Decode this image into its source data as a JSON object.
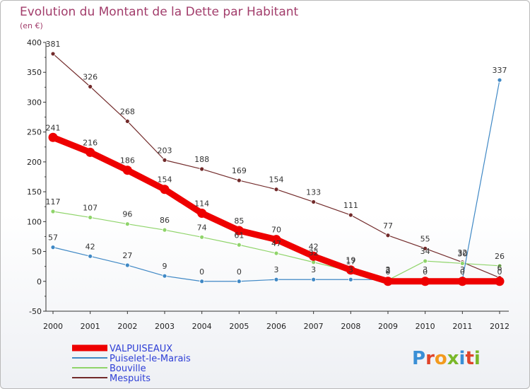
{
  "header": {
    "title": "Evolution du Montant de la Dette par Habitant",
    "unit": "(en €)"
  },
  "logo": {
    "text": "Proxiti",
    "letters": [
      "P",
      "r",
      "o",
      "x",
      "i",
      "t",
      "i"
    ],
    "colors": [
      "#3a8fd6",
      "#e0442a",
      "#f39a1e",
      "#7ab829",
      "#3a8fd6",
      "#e0442a",
      "#7ab829"
    ]
  },
  "chart_data": {
    "type": "line",
    "title": "Evolution du Montant de la Dette par Habitant",
    "subtitle": "(en €)",
    "x": [
      "2000",
      "2001",
      "2002",
      "2003",
      "2004",
      "2005",
      "2006",
      "2007",
      "2008",
      "2009",
      "2010",
      "2011",
      "2012"
    ],
    "ylim": [
      -50,
      400
    ],
    "yticks": [
      -50,
      0,
      50,
      100,
      150,
      200,
      250,
      300,
      350,
      400
    ],
    "grid": false,
    "legend": "bottom-left",
    "series": [
      {
        "name": "VALPUISEAUX",
        "color": "#ee0000",
        "values": [
          241,
          216,
          186,
          154,
          114,
          85,
          70,
          42,
          19,
          0,
          0,
          0,
          0
        ]
      },
      {
        "name": "Puiselet-le-Marais",
        "color": "#3f88c5",
        "values": [
          57,
          42,
          27,
          9,
          0,
          0,
          3,
          3,
          3,
          3,
          3,
          3,
          337
        ]
      },
      {
        "name": "Bouville",
        "color": "#8fd46a",
        "values": [
          117,
          107,
          96,
          86,
          74,
          61,
          47,
          32,
          17,
          2,
          34,
          30,
          26
        ]
      },
      {
        "name": "Mespuits",
        "color": "#722a2a",
        "values": [
          381,
          326,
          268,
          203,
          188,
          169,
          154,
          133,
          111,
          77,
          55,
          32,
          6
        ]
      }
    ],
    "labels": [
      [
        "241",
        "216",
        "186",
        "154",
        "114",
        "85",
        "70",
        "42",
        "19",
        "0",
        "0",
        "0",
        "0"
      ],
      [
        "57",
        "42",
        "27",
        "9",
        "0",
        "0",
        "3",
        "3",
        "3",
        "3",
        "3",
        "3",
        "337"
      ],
      [
        "117",
        "107",
        "96",
        "86",
        "74",
        "61",
        "47",
        "32",
        "17",
        "2",
        "34",
        "30",
        "26"
      ],
      [
        "381",
        "326",
        "268",
        "203",
        "188",
        "169",
        "154",
        "133",
        "111",
        "77",
        "55",
        "32",
        "6"
      ]
    ]
  }
}
